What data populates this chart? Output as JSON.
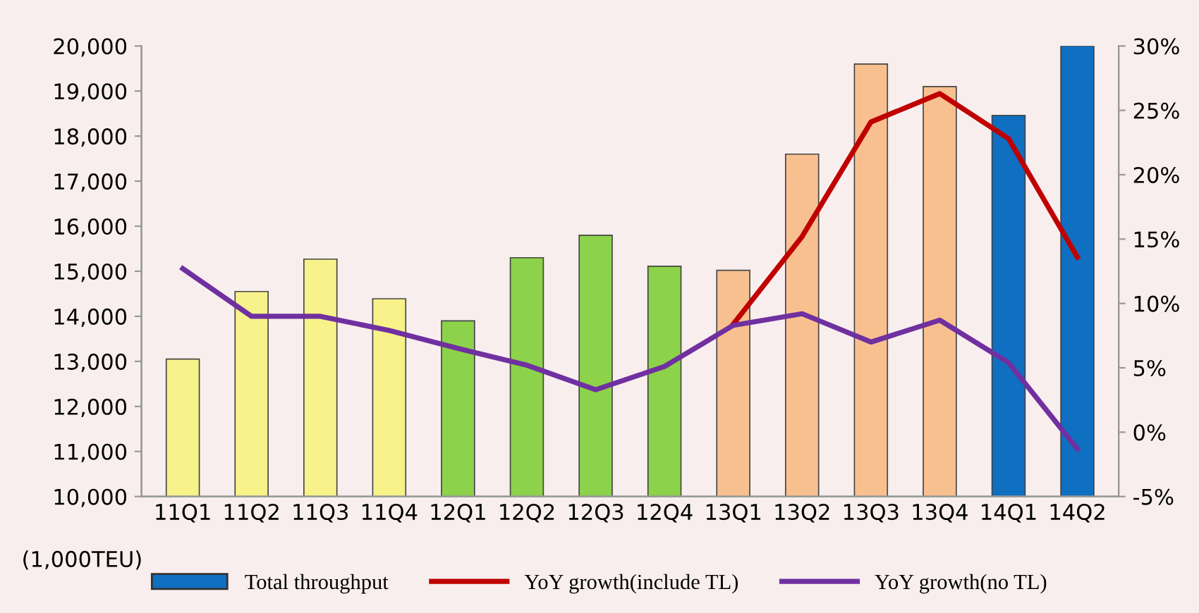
{
  "chart_data": {
    "type": "bar",
    "ylabel": "(1,000TEU)",
    "categories": [
      "11Q1",
      "11Q2",
      "11Q3",
      "11Q4",
      "12Q1",
      "12Q2",
      "12Q3",
      "12Q4",
      "13Q1",
      "13Q2",
      "13Q3",
      "13Q4",
      "14Q1",
      "14Q2"
    ],
    "series": [
      {
        "name": "Total throughput",
        "color": "#0f6fc0",
        "colors": [
          "#f7f28a",
          "#f7f28a",
          "#f7f28a",
          "#f7f28a",
          "#8cd24a",
          "#8cd24a",
          "#8cd24a",
          "#8cd24a",
          "#f9c08f",
          "#f9c08f",
          "#f9c08f",
          "#f9c08f",
          "#0f6fc0",
          "#0f6fc0"
        ],
        "values": [
          13050,
          14550,
          15270,
          14390,
          13900,
          15300,
          15800,
          15110,
          15020,
          17600,
          19600,
          19100,
          18460,
          20000
        ]
      },
      {
        "name": "YoY growth(include TL)",
        "type": "line",
        "axis": "y2",
        "color": "#c00000",
        "values": [
          null,
          null,
          null,
          null,
          null,
          null,
          null,
          null,
          8.4,
          15.2,
          24.1,
          26.3,
          22.8,
          13.6
        ]
      },
      {
        "name": "YoY growth(no TL)",
        "type": "line",
        "axis": "y2",
        "color": "#7030a0",
        "values": [
          12.7,
          9.0,
          9.0,
          7.9,
          6.5,
          5.2,
          3.3,
          5.1,
          8.3,
          9.2,
          7.0,
          8.7,
          5.4,
          -1.3
        ]
      }
    ],
    "ylim": [
      10000,
      20000
    ],
    "yticks": [
      {
        "value": 10000,
        "label": "10,000"
      },
      {
        "value": 11000,
        "label": "11,000"
      },
      {
        "value": 12000,
        "label": "12,000"
      },
      {
        "value": 13000,
        "label": "13,000"
      },
      {
        "value": 14000,
        "label": "14,000"
      },
      {
        "value": 15000,
        "label": "15,000"
      },
      {
        "value": 16000,
        "label": "16,000"
      },
      {
        "value": 17000,
        "label": "17,000"
      },
      {
        "value": 18000,
        "label": "18,000"
      },
      {
        "value": 19000,
        "label": "19,000"
      },
      {
        "value": 20000,
        "label": "20,000"
      }
    ],
    "y2lim": [
      -5,
      30
    ],
    "y2ticks": [
      {
        "value": -5,
        "label": "-5%"
      },
      {
        "value": 0,
        "label": "0%"
      },
      {
        "value": 5,
        "label": "5%"
      },
      {
        "value": 10,
        "label": "10%"
      },
      {
        "value": 15,
        "label": "15%"
      },
      {
        "value": 20,
        "label": "20%"
      },
      {
        "value": 25,
        "label": "25%"
      },
      {
        "value": 30,
        "label": "30%"
      }
    ],
    "grid": false,
    "legend": "bottom",
    "marker": "none",
    "line_style": "solid"
  }
}
